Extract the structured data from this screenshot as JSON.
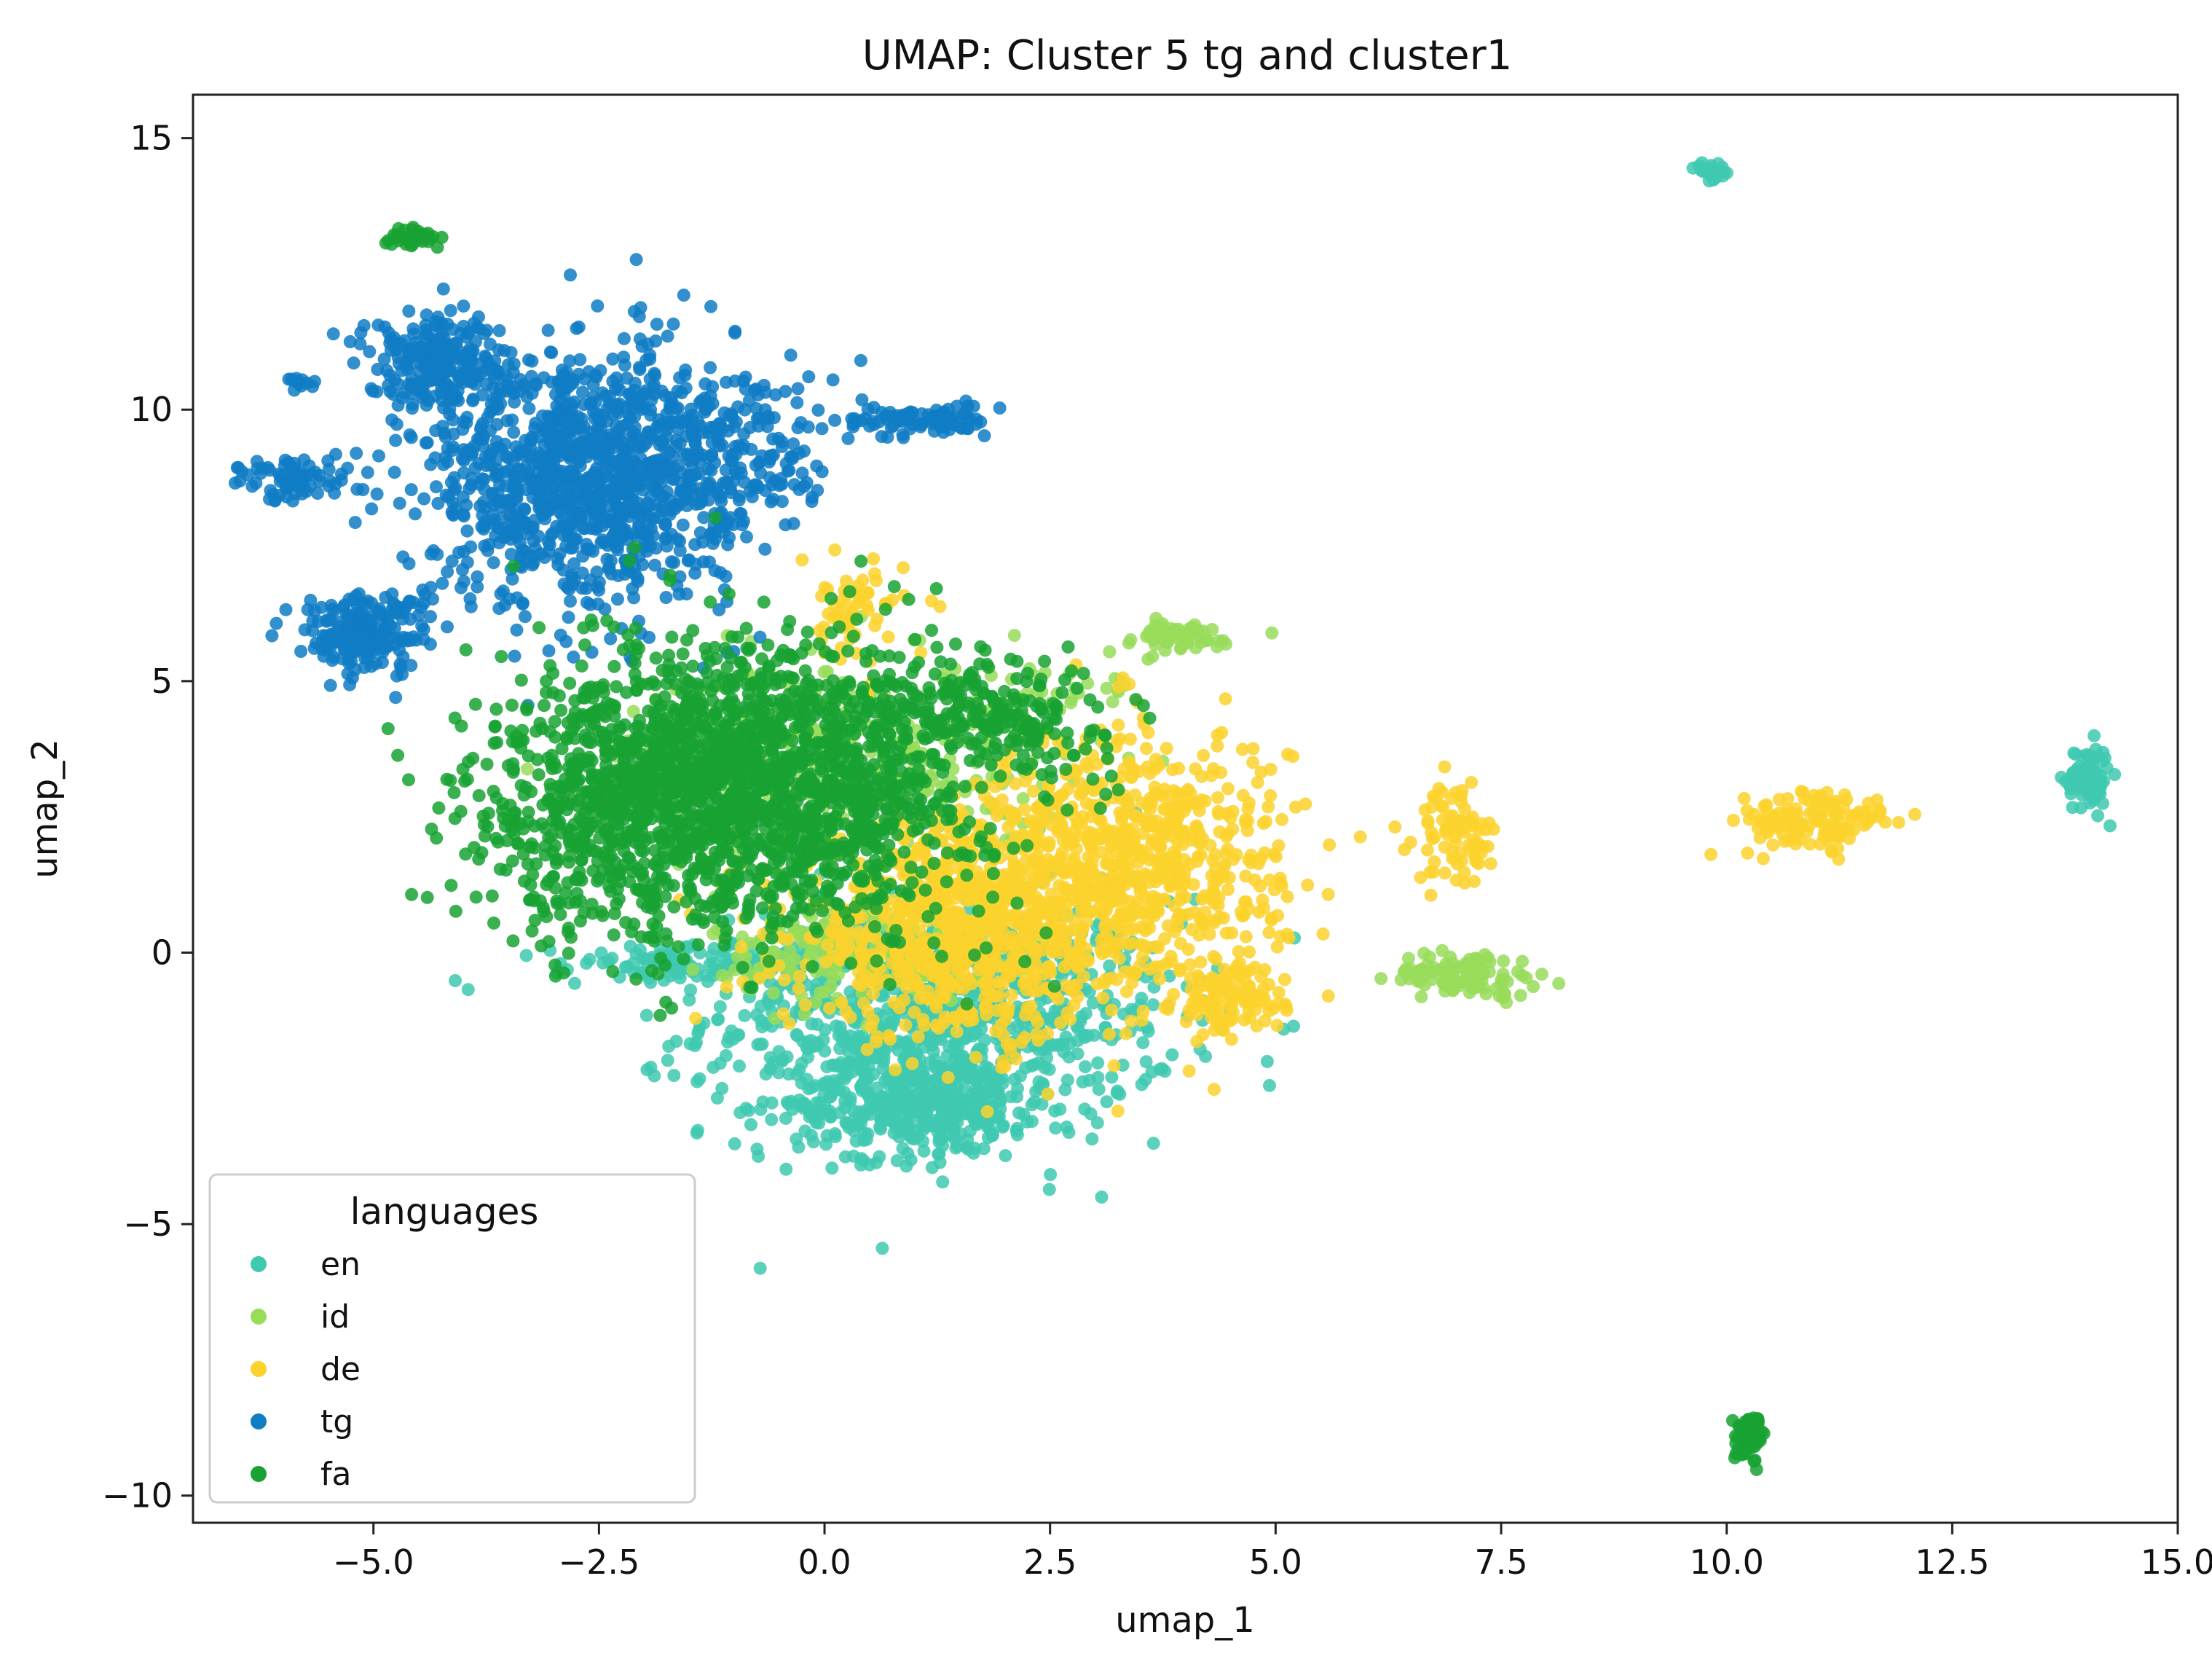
{
  "chart_data": {
    "type": "scatter",
    "title": "UMAP: Cluster 5 tg and cluster1",
    "xlabel": "umap_1",
    "ylabel": "umap_2",
    "xlim": [
      -7.0,
      15.0
    ],
    "ylim": [
      -10.5,
      15.8
    ],
    "xticks": [
      -5.0,
      -2.5,
      0.0,
      2.5,
      5.0,
      7.5,
      10.0,
      12.5,
      15.0
    ],
    "xtick_labels": [
      "−5.0",
      "−2.5",
      "0.0",
      "2.5",
      "5.0",
      "7.5",
      "10.0",
      "12.5",
      "15.0"
    ],
    "yticks": [
      15,
      10,
      5,
      0,
      -5,
      -10
    ],
    "ytick_labels": [
      "15",
      "10",
      "5",
      "0",
      "−5",
      "−10"
    ],
    "grid": false,
    "legend": {
      "title": "languages",
      "placement": "lower-left",
      "entries": [
        "en",
        "id",
        "de",
        "tg",
        "fa"
      ]
    },
    "series": [
      {
        "name": "en",
        "color": "#3ec9b0",
        "clusters": [
          {
            "cx": 1.3,
            "cy": -1.2,
            "sx": 1.3,
            "sy": 1.1,
            "n": 900
          },
          {
            "cx": 1.0,
            "cy": -2.8,
            "sx": 0.7,
            "sy": 0.5,
            "n": 350
          },
          {
            "cx": -1.2,
            "cy": -0.2,
            "sx": 0.9,
            "sy": 0.15,
            "n": 130
          },
          {
            "cx": 9.85,
            "cy": 14.4,
            "sx": 0.1,
            "sy": 0.08,
            "n": 25
          },
          {
            "cx": 14.0,
            "cy": 3.2,
            "sx": 0.12,
            "sy": 0.3,
            "n": 90
          }
        ]
      },
      {
        "name": "id",
        "color": "#98dc5a",
        "clusters": [
          {
            "cx": 0.3,
            "cy": 3.6,
            "sx": 1.2,
            "sy": 0.9,
            "n": 350
          },
          {
            "cx": 0.4,
            "cy": 0.1,
            "sx": 0.8,
            "sy": 0.5,
            "n": 220
          },
          {
            "cx": 3.85,
            "cy": 5.8,
            "sx": 0.4,
            "sy": 0.15,
            "n": 60
          },
          {
            "cx": 2.8,
            "cy": 4.8,
            "sx": 0.4,
            "sy": 0.2,
            "n": 25
          },
          {
            "cx": 7.1,
            "cy": -0.4,
            "sx": 0.4,
            "sy": 0.2,
            "n": 110
          }
        ]
      },
      {
        "name": "de",
        "color": "#fcd22d",
        "clusters": [
          {
            "cx": 1.6,
            "cy": 0.5,
            "sx": 1.0,
            "sy": 1.0,
            "n": 900
          },
          {
            "cx": 3.5,
            "cy": 1.7,
            "sx": 0.8,
            "sy": 1.2,
            "n": 650
          },
          {
            "cx": 4.5,
            "cy": -0.9,
            "sx": 0.3,
            "sy": 0.3,
            "n": 100
          },
          {
            "cx": 0.3,
            "cy": 6.2,
            "sx": 0.3,
            "sy": 0.5,
            "n": 60
          },
          {
            "cx": 7.0,
            "cy": 2.2,
            "sx": 0.22,
            "sy": 0.45,
            "n": 80
          },
          {
            "cx": 11.0,
            "cy": 2.4,
            "sx": 0.45,
            "sy": 0.3,
            "n": 130
          }
        ]
      },
      {
        "name": "tg",
        "color": "#0f7dc4",
        "clusters": [
          {
            "cx": -2.7,
            "cy": 8.8,
            "sx": 0.85,
            "sy": 1.2,
            "n": 1100
          },
          {
            "cx": -4.3,
            "cy": 10.9,
            "sx": 0.4,
            "sy": 0.45,
            "n": 230
          },
          {
            "cx": -5.1,
            "cy": 5.9,
            "sx": 0.35,
            "sy": 0.35,
            "n": 220
          },
          {
            "cx": -5.9,
            "cy": 8.7,
            "sx": 0.3,
            "sy": 0.2,
            "n": 70
          },
          {
            "cx": 1.0,
            "cy": 9.8,
            "sx": 0.4,
            "sy": 0.15,
            "n": 90
          },
          {
            "cx": -1.0,
            "cy": 9.2,
            "sx": 0.6,
            "sy": 0.8,
            "n": 200
          },
          {
            "cx": -5.8,
            "cy": 10.5,
            "sx": 0.08,
            "sy": 0.08,
            "n": 12
          }
        ]
      },
      {
        "name": "fa",
        "color": "#17a232",
        "clusters": [
          {
            "cx": -0.7,
            "cy": 3.1,
            "sx": 1.2,
            "sy": 1.3,
            "n": 1700
          },
          {
            "cx": -2.4,
            "cy": 2.5,
            "sx": 0.9,
            "sy": 1.2,
            "n": 450
          },
          {
            "cx": 1.8,
            "cy": 4.3,
            "sx": 0.8,
            "sy": 0.5,
            "n": 220
          },
          {
            "cx": -4.5,
            "cy": 13.15,
            "sx": 0.2,
            "sy": 0.1,
            "n": 30
          },
          {
            "cx": 10.25,
            "cy": -9.0,
            "sx": 0.08,
            "sy": 0.22,
            "n": 50
          }
        ]
      }
    ]
  }
}
